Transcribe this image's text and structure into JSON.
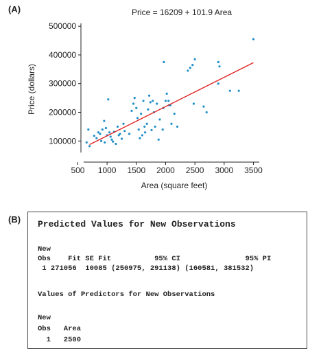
{
  "panels": {
    "a_label": "(A)",
    "b_label": "(B)"
  },
  "chart_data": {
    "type": "scatter",
    "title": "Price = 16209 + 101.9 Area",
    "xlabel": "Area (square feet)",
    "ylabel": "Price (dollars)",
    "xlim": [
      600,
      3600
    ],
    "ylim": [
      60000,
      510000
    ],
    "xticks": [
      500,
      1000,
      1500,
      2000,
      2500,
      3000,
      3500
    ],
    "xtick_labels": [
      "500",
      "1000",
      "1500",
      "2000",
      "2500",
      "3000",
      "3500"
    ],
    "yticks": [
      100000,
      200000,
      300000,
      400000,
      500000
    ],
    "ytick_labels": [
      "100000",
      "200000",
      "300000",
      "400000",
      "500000"
    ],
    "point_color": "#1f8fc9",
    "line_color": "#e02020",
    "regression": {
      "intercept": 16209,
      "slope": 101.9,
      "x_range": [
        700,
        3500
      ]
    },
    "points": [
      [
        650,
        95000
      ],
      [
        700,
        82000
      ],
      [
        680,
        140000
      ],
      [
        780,
        118000
      ],
      [
        820,
        110000
      ],
      [
        850,
        130000
      ],
      [
        880,
        125000
      ],
      [
        900,
        100000
      ],
      [
        920,
        140000
      ],
      [
        950,
        170000
      ],
      [
        960,
        95000
      ],
      [
        980,
        145000
      ],
      [
        1000,
        120000
      ],
      [
        1020,
        245000
      ],
      [
        1040,
        130000
      ],
      [
        1060,
        115000
      ],
      [
        1080,
        105000
      ],
      [
        1100,
        98000
      ],
      [
        1120,
        132000
      ],
      [
        1150,
        90000
      ],
      [
        1180,
        150000
      ],
      [
        1200,
        120000
      ],
      [
        1220,
        125000
      ],
      [
        1250,
        108000
      ],
      [
        1280,
        160000
      ],
      [
        1300,
        135000
      ],
      [
        1380,
        125000
      ],
      [
        1420,
        205000
      ],
      [
        1450,
        230000
      ],
      [
        1470,
        250000
      ],
      [
        1500,
        215000
      ],
      [
        1520,
        180000
      ],
      [
        1540,
        140000
      ],
      [
        1560,
        110000
      ],
      [
        1580,
        195000
      ],
      [
        1600,
        120000
      ],
      [
        1620,
        240000
      ],
      [
        1640,
        150000
      ],
      [
        1650,
        130000
      ],
      [
        1680,
        160000
      ],
      [
        1700,
        210000
      ],
      [
        1720,
        258000
      ],
      [
        1740,
        235000
      ],
      [
        1760,
        138000
      ],
      [
        1780,
        240000
      ],
      [
        1800,
        200000
      ],
      [
        1820,
        150000
      ],
      [
        1850,
        230000
      ],
      [
        1880,
        105000
      ],
      [
        1900,
        175000
      ],
      [
        1950,
        140000
      ],
      [
        1960,
        215000
      ],
      [
        1970,
        375000
      ],
      [
        2000,
        240000
      ],
      [
        2020,
        265000
      ],
      [
        2050,
        240000
      ],
      [
        2060,
        225000
      ],
      [
        2080,
        225000
      ],
      [
        2100,
        160000
      ],
      [
        2150,
        195000
      ],
      [
        2200,
        150000
      ],
      [
        2380,
        345000
      ],
      [
        2420,
        355000
      ],
      [
        2460,
        365000
      ],
      [
        2480,
        230000
      ],
      [
        2500,
        385000
      ],
      [
        2650,
        220000
      ],
      [
        2700,
        200000
      ],
      [
        2900,
        375000
      ],
      [
        2920,
        360000
      ],
      [
        2900,
        300000
      ],
      [
        3100,
        275000
      ],
      [
        3250,
        275000
      ],
      [
        3500,
        455000
      ]
    ]
  },
  "output": {
    "heading": "Predicted Values for New Observations",
    "lines": [
      "New",
      "Obs    Fit SE Fit          95% CI               95% PI",
      " 1 271056  10085 (250975, 291138) (160581, 381532)",
      "",
      "Values of Predictors for New Observations",
      "",
      "New",
      "Obs   Area",
      "  1   2500"
    ]
  }
}
